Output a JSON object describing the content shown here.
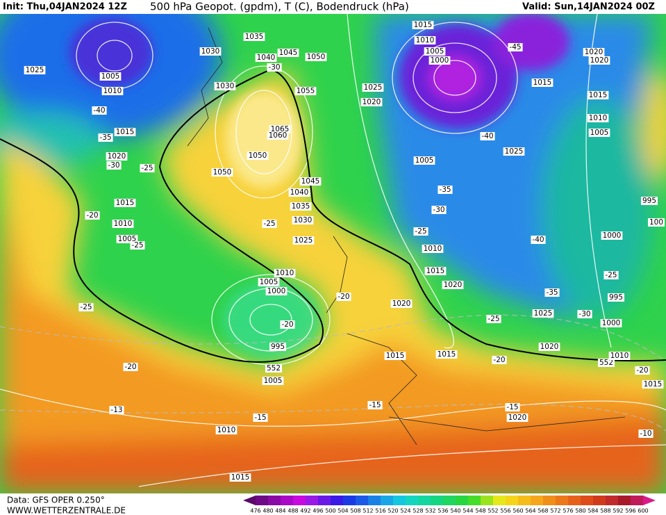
{
  "header": {
    "init": "Init: Thu,04JAN2024 12Z",
    "title": "500 hPa Geopot. (gpdm), T (C), Bodendruck (hPa)",
    "valid": "Valid: Sun,14JAN2024 00Z"
  },
  "map": {
    "contour_labels": [
      "1035",
      "1030",
      "1040",
      "1045",
      "1050",
      "-30",
      "1025",
      "1005",
      "1010",
      "1030",
      "1055",
      "1025",
      "1020",
      "-40",
      "1015",
      "-35",
      "1065",
      "1060",
      "1050",
      "1020",
      "-30",
      "-25",
      "1050",
      "1045",
      "1040",
      "1035",
      "1015",
      "-20",
      "1010",
      "1030",
      "-25",
      "1005",
      "-25",
      "1025",
      "1010",
      "1005",
      "1000",
      "-20",
      "-25",
      "-20",
      "995",
      "552",
      "1005",
      "-20",
      "-13",
      "-15",
      "1010",
      "1015",
      "-15",
      "1015",
      "1020",
      "1015",
      "-20",
      "-15",
      "1020",
      "-10",
      "1015",
      "-20",
      "552",
      "1010",
      "1020",
      "-30",
      "1000",
      "995",
      "-25",
      "-35",
      "1025",
      "-25",
      "1000",
      "-40",
      "995",
      "100",
      "1020",
      "1015",
      "1010",
      "-25",
      "-30",
      "-35",
      "1005",
      "1025",
      "-40",
      "1010",
      "1015",
      "1005",
      "1000",
      "-45",
      "1015",
      "1020",
      "1020",
      "1015",
      "1010",
      "1005"
    ]
  },
  "colorbar": {
    "labels": [
      "476",
      "480",
      "484",
      "488",
      "492",
      "496",
      "500",
      "504",
      "508",
      "512",
      "516",
      "520",
      "524",
      "528",
      "532",
      "536",
      "540",
      "544",
      "548",
      "552",
      "556",
      "560",
      "564",
      "568",
      "572",
      "576",
      "580",
      "584",
      "588",
      "592",
      "596",
      "600"
    ]
  },
  "footer": {
    "source": "Data: GFS OPER 0.250°",
    "website": "WWW.WETTERZENTRALE.DE"
  }
}
